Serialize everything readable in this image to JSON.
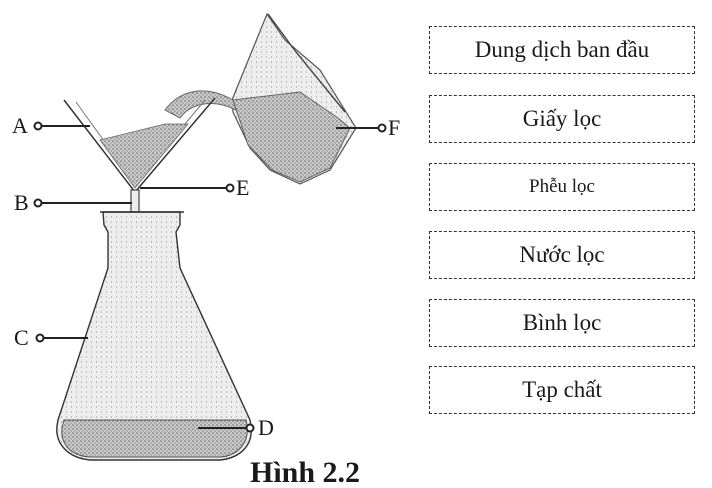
{
  "labels": {
    "a": "A",
    "b": "B",
    "c": "C",
    "d": "D",
    "e": "E",
    "f": "F"
  },
  "terms": [
    "Dung dịch ban đầu",
    "Giấy lọc",
    "Phễu lọc",
    "Nước lọc",
    "Bình lọc",
    "Tạp chất"
  ],
  "caption": "Hình 2.2"
}
